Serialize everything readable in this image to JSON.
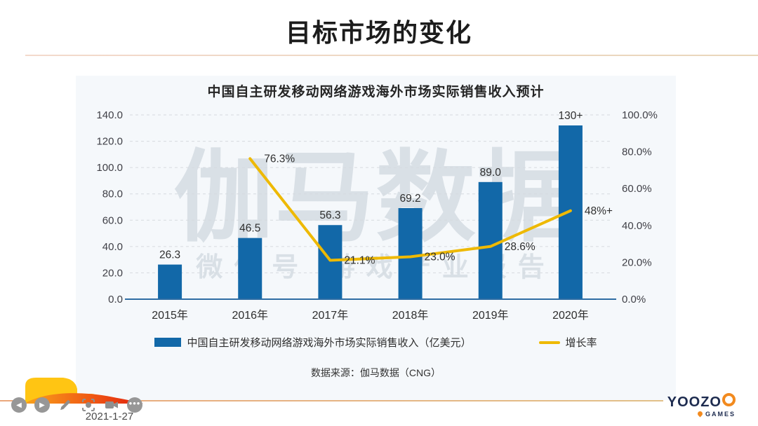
{
  "header": {
    "title": "目标市场的变化"
  },
  "watermark": {
    "line1": "伽马数据",
    "line2": "微信号  游戏产业报告"
  },
  "chart_data": {
    "type": "bar",
    "title": "中国自主研发移动网络游戏海外市场实际销售收入预计",
    "categories": [
      "2015年",
      "2016年",
      "2017年",
      "2018年",
      "2019年",
      "2020年"
    ],
    "series": [
      {
        "name": "中国自主研发移动网络游戏海外市场实际销售收入（亿美元）",
        "type": "bar",
        "color": "#1268a8",
        "values": [
          26.3,
          46.5,
          56.3,
          69.2,
          89.0,
          132
        ],
        "labels": [
          "26.3",
          "46.5",
          "56.3",
          "69.2",
          "89.0",
          "130+"
        ],
        "axis": "left"
      },
      {
        "name": "增长率",
        "type": "line",
        "color": "#eeb902",
        "values": [
          null,
          76.3,
          21.1,
          23.0,
          28.6,
          48
        ],
        "labels": [
          "",
          "76.3%",
          "21.1%",
          "23.0%",
          "28.6%",
          "48%+"
        ],
        "axis": "right"
      }
    ],
    "left_axis": {
      "min": 0,
      "max": 140,
      "step": 20,
      "ticks": [
        "0.0",
        "20.0",
        "40.0",
        "60.0",
        "80.0",
        "100.0",
        "120.0",
        "140.0"
      ]
    },
    "right_axis": {
      "min": 0,
      "max": 100,
      "step": 20,
      "ticks": [
        "0.0%",
        "20.0%",
        "40.0%",
        "60.0%",
        "80.0%",
        "100.0%"
      ]
    },
    "grid": "dashed-horizontal",
    "legend_position": "bottom",
    "source": "数据来源：伽马数据（CNG）"
  },
  "footer": {
    "date": "2021-1-27",
    "logo": {
      "main": "YOOZO",
      "sub": "GAMES"
    }
  },
  "toolbar": {
    "prev_glyph": "◀",
    "next_glyph": "▶",
    "more_glyph": "•••"
  },
  "colors": {
    "bar_blue": "#1268a8",
    "line_yellow": "#eeb902",
    "axis_blue": "#2e6da4",
    "panel_bg": "#f5f8fb",
    "accent_orange": "#f28a1e"
  }
}
